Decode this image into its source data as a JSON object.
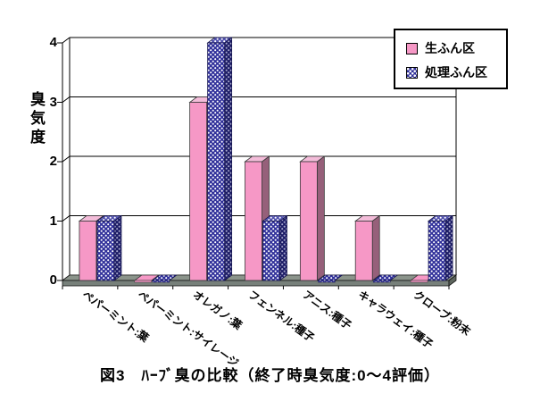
{
  "figure": {
    "caption": "図3　ﾊｰﾌﾞ臭の比較（終了時臭気度:0～4評価）"
  },
  "chart": {
    "y_tick_labels": [
      "0",
      "1",
      "2",
      "3",
      "4"
    ]
  },
  "chart_data": {
    "type": "bar",
    "style": "3d-column",
    "title": "図3　ﾊｰﾌﾞ臭の比較（終了時臭気度:0～4評価）",
    "ylabel": "臭気度",
    "xlabel": "",
    "ylim": [
      0,
      4
    ],
    "y_ticks": [
      0,
      1,
      2,
      3,
      4
    ],
    "grid": true,
    "legend_position": "top-right",
    "categories": [
      "ペパーミント:葉",
      "ペパーミント:サイレージ",
      "オレガノ:葉",
      "フェンネル:種子",
      "アニス:種子",
      "キャラウェイ:種子",
      "クローブ:粉末"
    ],
    "series": [
      {
        "name": "生ふん区",
        "values": [
          1,
          0,
          3,
          2,
          2,
          1,
          0
        ],
        "color": "#F698C6",
        "fill": "solid-pink"
      },
      {
        "name": "処理ふん区",
        "values": [
          1,
          0,
          4,
          1,
          0,
          0,
          1
        ],
        "color": "#30309A",
        "fill": "white-diamond-check"
      }
    ]
  }
}
